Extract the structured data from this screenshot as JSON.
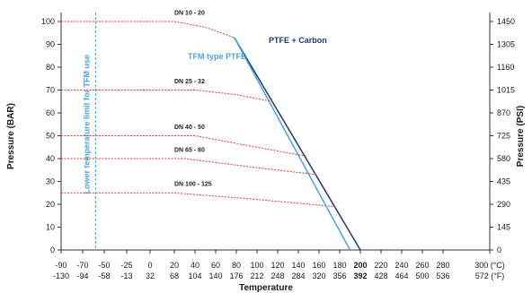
{
  "chart_data": {
    "type": "line",
    "title": "",
    "xlabel": "Temperature",
    "ylabel": "Pressure (BAR)",
    "ylabel_right": "Pressure (PSI)",
    "xlim": [
      -90,
      300
    ],
    "ylim": [
      0,
      105
    ],
    "grid": false,
    "x_ticks_c": [
      -90,
      -70,
      -50,
      -25,
      0,
      20,
      40,
      60,
      80,
      100,
      120,
      140,
      160,
      180,
      200,
      220,
      240,
      260,
      280,
      300
    ],
    "x_ticks_c_labels": [
      "-90",
      "-70",
      "-50",
      "-25",
      "0",
      "20",
      "40",
      "60",
      "80",
      "100",
      "120",
      "140",
      "160",
      "180",
      "200",
      "220",
      "240",
      "260",
      "280",
      "300 (°C)"
    ],
    "x_ticks_f_labels": [
      "-130",
      "-94",
      "-58",
      "-13",
      "32",
      "68",
      "104",
      "140",
      "176",
      "212",
      "248",
      "284",
      "320",
      "356",
      "392",
      "428",
      "464",
      "500",
      "536",
      "572 (°F)"
    ],
    "y_ticks": [
      0,
      10,
      20,
      30,
      40,
      50,
      60,
      70,
      80,
      90,
      100
    ],
    "y_tick_labels": [
      "0",
      "10",
      "20",
      "30",
      "40",
      "50",
      "60",
      "70",
      "80",
      "90",
      "100"
    ],
    "y_right_ticks": [
      0,
      10,
      20,
      30,
      40,
      50,
      60,
      70,
      80,
      90,
      100
    ],
    "y_right_tick_labels": [
      "0",
      "145",
      "290",
      "435",
      "580",
      "725",
      "870",
      "1015",
      "1160",
      "1305",
      "1450"
    ],
    "series": [
      {
        "name": "PTFE + Carbon",
        "color": "#1f3a6e",
        "x": [
          78,
          200
        ],
        "y": [
          93,
          0
        ]
      },
      {
        "name": "TFM type PTFE",
        "color": "#4aa3df",
        "x": [
          78,
          190
        ],
        "y": [
          93,
          0
        ]
      },
      {
        "name": "DN 10 - 20",
        "color": "#e83a3a",
        "x": [
          -90,
          20,
          50,
          78
        ],
        "y": [
          100,
          100,
          97.5,
          93
        ]
      },
      {
        "name": "DN 25 - 32",
        "color": "#e83a3a",
        "x": [
          -90,
          40,
          80,
          115
        ],
        "y": [
          70,
          70,
          68,
          65
        ]
      },
      {
        "name": "DN 40 - 50",
        "color": "#e83a3a",
        "x": [
          -90,
          40,
          100,
          148
        ],
        "y": [
          50,
          50,
          45,
          41
        ]
      },
      {
        "name": "DN 65 - 80",
        "color": "#e83a3a",
        "x": [
          -90,
          30,
          100,
          158
        ],
        "y": [
          40,
          40,
          36,
          33
        ]
      },
      {
        "name": "DN 100 - 125",
        "color": "#e83a3a",
        "x": [
          -90,
          20,
          90,
          176
        ],
        "y": [
          25,
          25,
          22.5,
          19
        ]
      }
    ],
    "annotations": [
      {
        "text": "DN 10 - 20",
        "x": 20,
        "y": 103
      },
      {
        "text": "DN 25 - 32",
        "x": 20,
        "y": 73
      },
      {
        "text": "DN 40 - 50",
        "x": 20,
        "y": 53
      },
      {
        "text": "DN 65 - 80",
        "x": 20,
        "y": 43
      },
      {
        "text": "DN 100 - 125",
        "x": 20,
        "y": 28
      }
    ],
    "vertical_limit": {
      "x": -58,
      "label": "Lower temperature limit for TFM use",
      "color": "#4aa3df"
    },
    "series_labels": [
      {
        "text": "PTFE + Carbon",
        "color": "#1f3a6e"
      },
      {
        "text": "TFM type PTFE",
        "color": "#4aa3df"
      }
    ],
    "x_tick_highlight": "200",
    "highlight_color": "#1f3a6e"
  }
}
